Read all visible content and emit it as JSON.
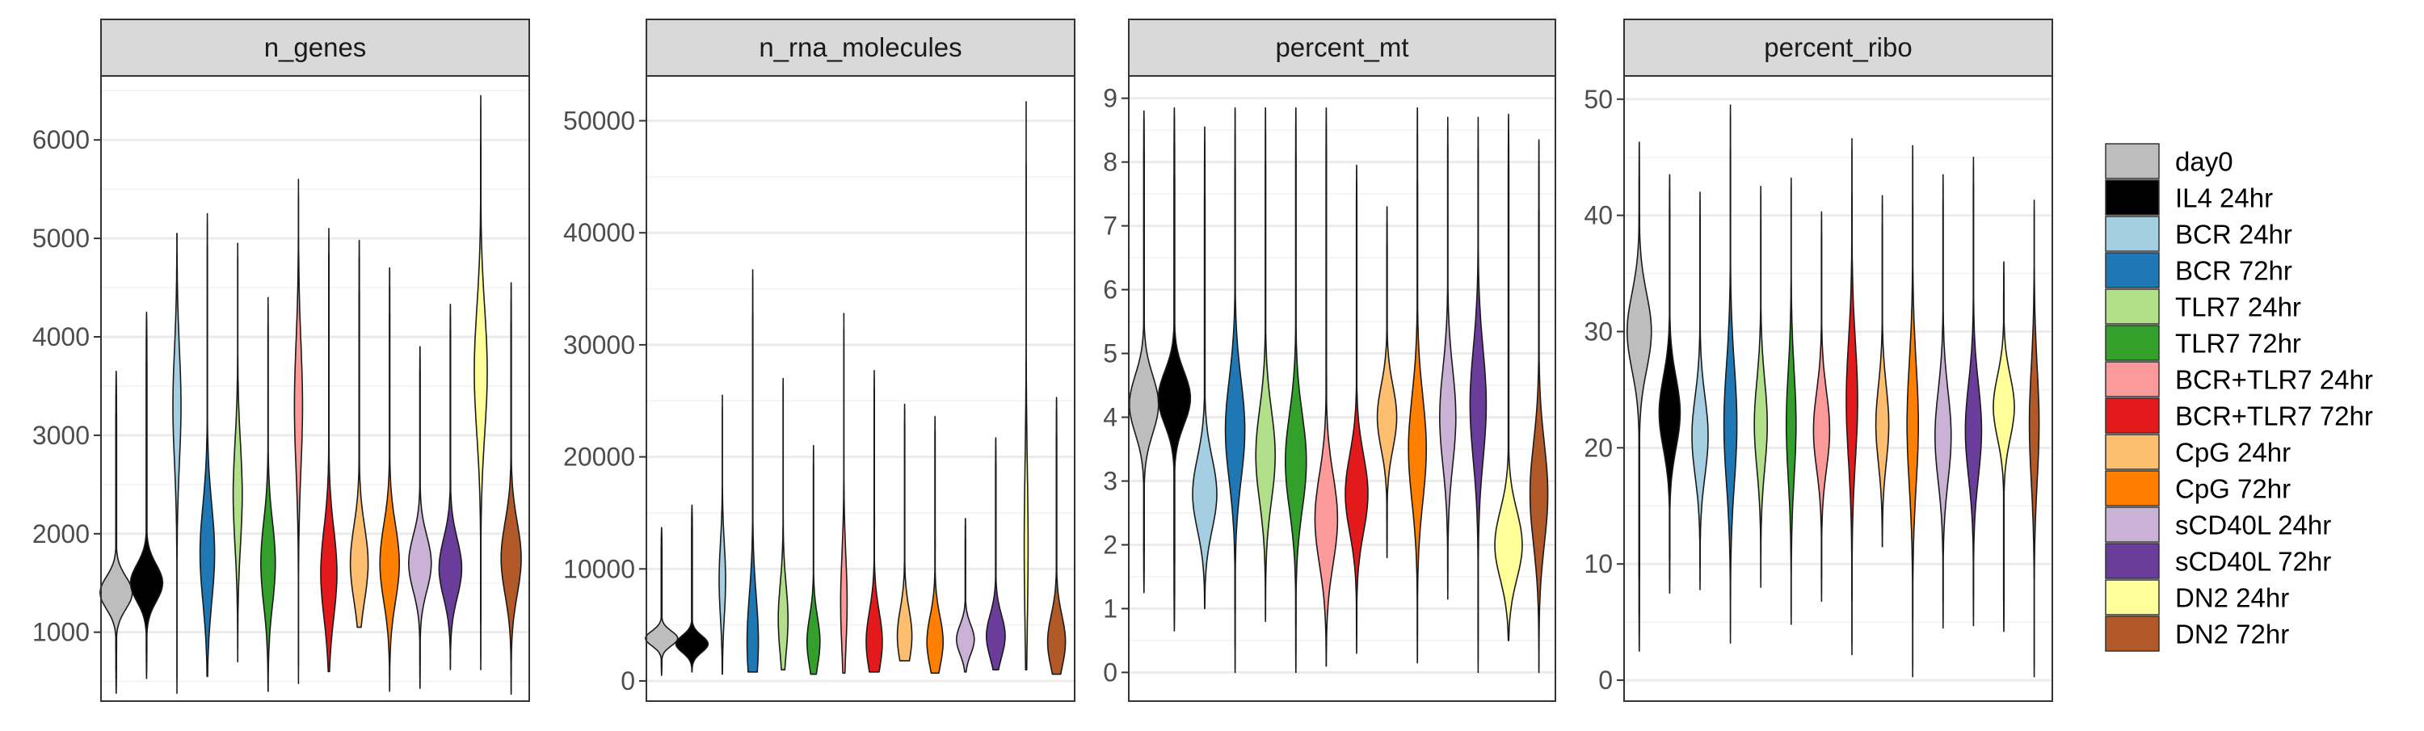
{
  "chart_data": {
    "type": "violin",
    "groups": [
      {
        "name": "day0",
        "color": "#BDBDBD"
      },
      {
        "name": "IL4 24hr",
        "color": "#000000"
      },
      {
        "name": "BCR 24hr",
        "color": "#A6CEE3"
      },
      {
        "name": "BCR 72hr",
        "color": "#1F78B4"
      },
      {
        "name": "TLR7 24hr",
        "color": "#B2DF8A"
      },
      {
        "name": "TLR7 72hr",
        "color": "#33A02C"
      },
      {
        "name": "BCR+TLR7 24hr",
        "color": "#FB9A99"
      },
      {
        "name": "BCR+TLR7 72hr",
        "color": "#E31A1C"
      },
      {
        "name": "CpG 24hr",
        "color": "#FDBF6F"
      },
      {
        "name": "CpG 72hr",
        "color": "#FF7F00"
      },
      {
        "name": "sCD40L 24hr",
        "color": "#CAB2D6"
      },
      {
        "name": "sCD40L 72hr",
        "color": "#6A3D9A"
      },
      {
        "name": "DN2 24hr",
        "color": "#FFFF99"
      },
      {
        "name": "DN2 72hr",
        "color": "#B15928"
      }
    ],
    "legend_position": "right",
    "grid": true,
    "panels": [
      {
        "title": "n_genes",
        "ylim": [
          300,
          6650
        ],
        "yticks": [
          1000,
          2000,
          3000,
          4000,
          5000,
          6000
        ],
        "violins": [
          {
            "min": 380,
            "max": 3650,
            "peak": 1400,
            "width": 1.0
          },
          {
            "min": 530,
            "max": 4250,
            "peak": 1500,
            "width": 1.0
          },
          {
            "min": 380,
            "max": 5050,
            "peak": 3300,
            "width": 0.25
          },
          {
            "min": 550,
            "max": 5250,
            "peak": 1800,
            "width": 0.45
          },
          {
            "min": 700,
            "max": 4950,
            "peak": 2400,
            "width": 0.28
          },
          {
            "min": 400,
            "max": 4400,
            "peak": 1700,
            "width": 0.45
          },
          {
            "min": 480,
            "max": 5600,
            "peak": 3300,
            "width": 0.25
          },
          {
            "min": 600,
            "max": 5100,
            "peak": 1600,
            "width": 0.5
          },
          {
            "min": 1050,
            "max": 4980,
            "peak": 1700,
            "width": 0.55
          },
          {
            "min": 400,
            "max": 4700,
            "peak": 1700,
            "width": 0.6
          },
          {
            "min": 430,
            "max": 3900,
            "peak": 1700,
            "width": 0.7
          },
          {
            "min": 620,
            "max": 4330,
            "peak": 1650,
            "width": 0.7
          },
          {
            "min": 620,
            "max": 6450,
            "peak": 3650,
            "width": 0.4
          },
          {
            "min": 370,
            "max": 4550,
            "peak": 1750,
            "width": 0.62
          }
        ]
      },
      {
        "title": "n_rna_molecules",
        "ylim": [
          -1800,
          54000
        ],
        "yticks": [
          0,
          10000,
          20000,
          30000,
          40000,
          50000
        ],
        "violins": [
          {
            "min": 500,
            "max": 13700,
            "peak": 3800,
            "width": 1.0
          },
          {
            "min": 800,
            "max": 15700,
            "peak": 3300,
            "width": 1.0
          },
          {
            "min": 600,
            "max": 25500,
            "peak": 9000,
            "width": 0.2
          },
          {
            "min": 800,
            "max": 36700,
            "peak": 3500,
            "width": 0.35
          },
          {
            "min": 1000,
            "max": 27000,
            "peak": 5500,
            "width": 0.3
          },
          {
            "min": 600,
            "max": 21000,
            "peak": 3500,
            "width": 0.4
          },
          {
            "min": 700,
            "max": 32800,
            "peak": 7000,
            "width": 0.2
          },
          {
            "min": 800,
            "max": 27700,
            "peak": 3500,
            "width": 0.5
          },
          {
            "min": 1800,
            "max": 24700,
            "peak": 4000,
            "width": 0.45
          },
          {
            "min": 700,
            "max": 23600,
            "peak": 3500,
            "width": 0.5
          },
          {
            "min": 800,
            "max": 14500,
            "peak": 3700,
            "width": 0.55
          },
          {
            "min": 1000,
            "max": 21700,
            "peak": 4000,
            "width": 0.58
          },
          {
            "min": 1000,
            "max": 51700,
            "peak": 12000,
            "width": 0.12
          },
          {
            "min": 600,
            "max": 25300,
            "peak": 3500,
            "width": 0.55
          }
        ]
      },
      {
        "title": "percent_mt",
        "ylim": [
          -0.45,
          9.35
        ],
        "yticks": [
          0,
          1,
          2,
          3,
          4,
          5,
          6,
          7,
          8,
          9
        ],
        "violins": [
          {
            "min": 1.25,
            "max": 8.8,
            "peak": 4.2,
            "width": 0.9
          },
          {
            "min": 0.65,
            "max": 8.85,
            "peak": 4.3,
            "width": 1.0
          },
          {
            "min": 1.0,
            "max": 8.55,
            "peak": 2.8,
            "width": 0.75
          },
          {
            "min": 0.0,
            "max": 8.85,
            "peak": 3.8,
            "width": 0.6
          },
          {
            "min": 0.8,
            "max": 8.85,
            "peak": 3.4,
            "width": 0.6
          },
          {
            "min": 0.0,
            "max": 8.85,
            "peak": 3.3,
            "width": 0.65
          },
          {
            "min": 0.1,
            "max": 8.85,
            "peak": 2.4,
            "width": 0.7
          },
          {
            "min": 0.3,
            "max": 7.95,
            "peak": 2.8,
            "width": 0.7
          },
          {
            "min": 1.8,
            "max": 7.3,
            "peak": 4.0,
            "width": 0.6
          },
          {
            "min": 0.15,
            "max": 8.85,
            "peak": 3.5,
            "width": 0.55
          },
          {
            "min": 1.15,
            "max": 8.7,
            "peak": 4.0,
            "width": 0.5
          },
          {
            "min": 0.0,
            "max": 8.7,
            "peak": 4.2,
            "width": 0.5
          },
          {
            "min": 0.5,
            "max": 8.75,
            "peak": 2.0,
            "width": 0.85
          },
          {
            "min": 0.0,
            "max": 8.35,
            "peak": 2.8,
            "width": 0.55
          }
        ]
      },
      {
        "title": "percent_ribo",
        "ylim": [
          -1.8,
          52.0
        ],
        "yticks": [
          0,
          10,
          20,
          30,
          40,
          50
        ],
        "violins": [
          {
            "min": 2.5,
            "max": 46.3,
            "peak": 30.0,
            "width": 0.75
          },
          {
            "min": 7.5,
            "max": 43.5,
            "peak": 23.0,
            "width": 0.65
          },
          {
            "min": 7.8,
            "max": 42.0,
            "peak": 21.0,
            "width": 0.5
          },
          {
            "min": 3.2,
            "max": 49.5,
            "peak": 22.0,
            "width": 0.4
          },
          {
            "min": 8.0,
            "max": 42.5,
            "peak": 22.0,
            "width": 0.4
          },
          {
            "min": 4.8,
            "max": 43.2,
            "peak": 22.0,
            "width": 0.3
          },
          {
            "min": 6.8,
            "max": 40.3,
            "peak": 21.5,
            "width": 0.5
          },
          {
            "min": 2.2,
            "max": 46.6,
            "peak": 24.0,
            "width": 0.35
          },
          {
            "min": 11.5,
            "max": 41.7,
            "peak": 22.0,
            "width": 0.4
          },
          {
            "min": 0.3,
            "max": 46.0,
            "peak": 22.0,
            "width": 0.35
          },
          {
            "min": 4.5,
            "max": 43.5,
            "peak": 21.0,
            "width": 0.5
          },
          {
            "min": 4.7,
            "max": 45.0,
            "peak": 21.5,
            "width": 0.5
          },
          {
            "min": 4.2,
            "max": 36.0,
            "peak": 23.5,
            "width": 0.65
          },
          {
            "min": 0.3,
            "max": 41.3,
            "peak": 22.0,
            "width": 0.3
          }
        ]
      }
    ]
  }
}
